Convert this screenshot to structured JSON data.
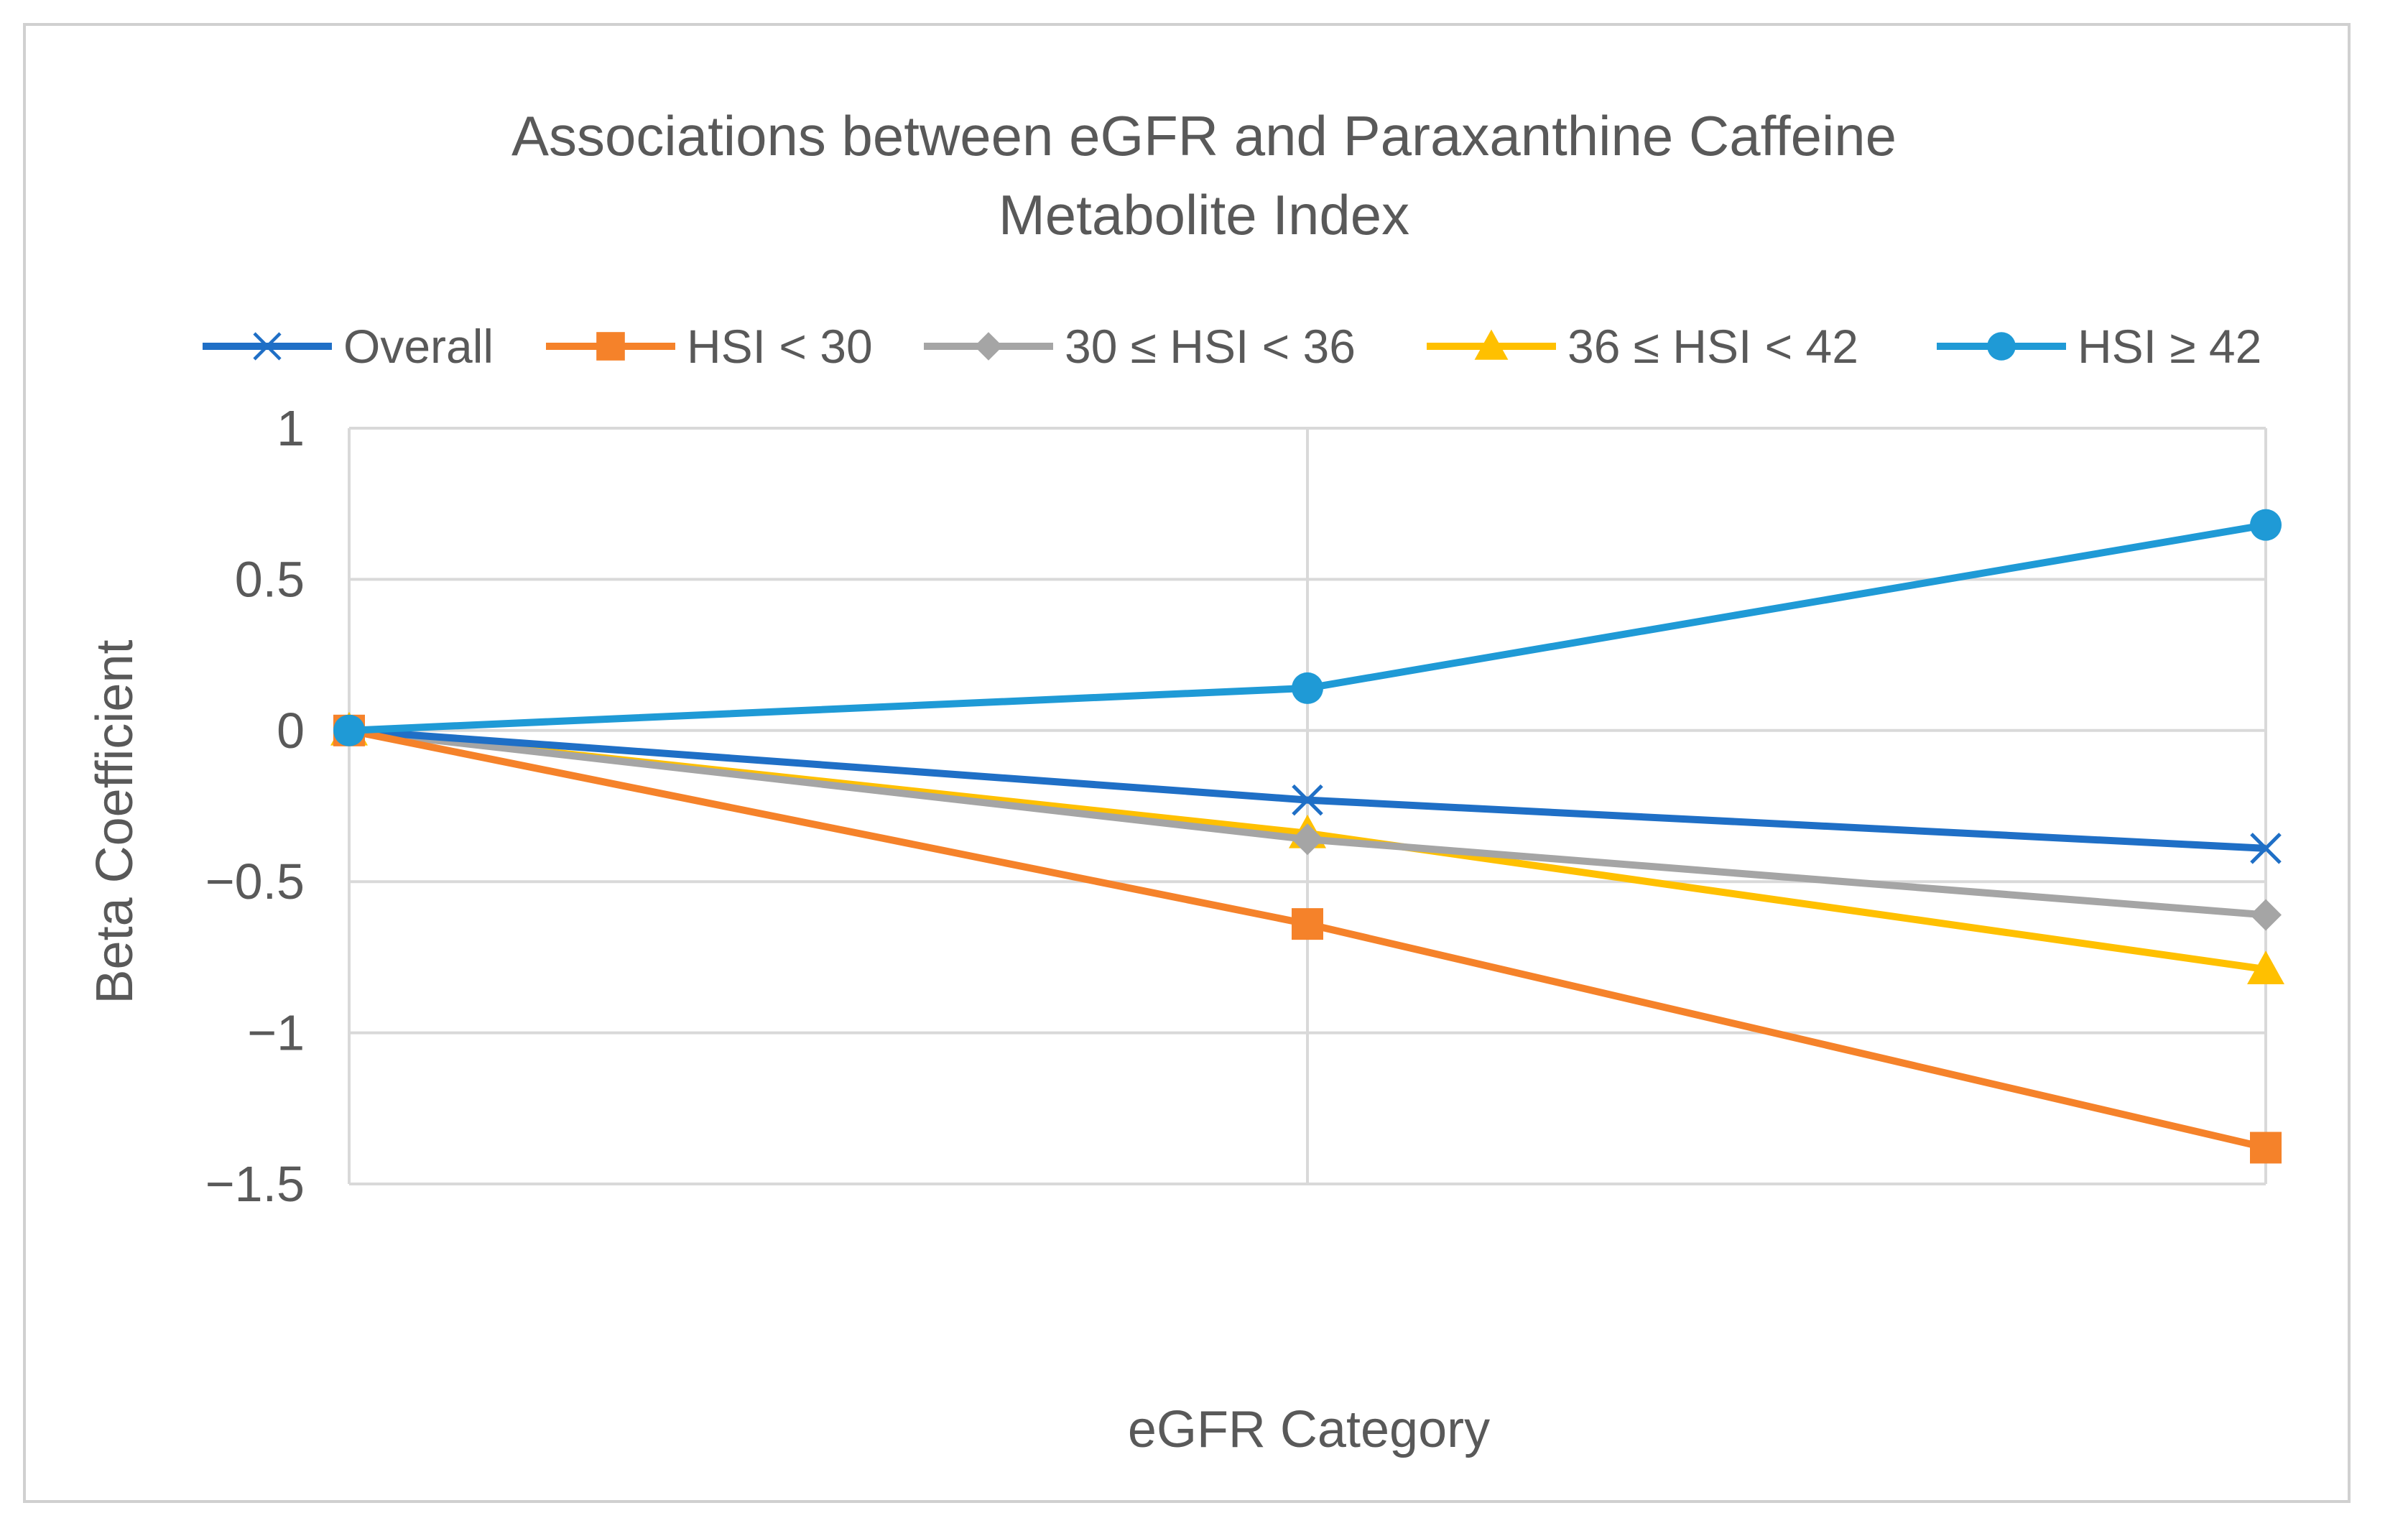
{
  "chart_data": {
    "type": "line",
    "title_lines": [
      "Associations between eGFR and Paraxanthine Caffeine",
      "Metabolite Index"
    ],
    "xlabel": "eGFR Category",
    "ylabel": "Beta Coefficient",
    "ylim": [
      -1.5,
      1
    ],
    "yticks": [
      1,
      0.5,
      0,
      -0.5,
      -1,
      -1.5
    ],
    "ytick_labels": [
      "1",
      "0.5",
      "0",
      "−0.5",
      "−1",
      "−1.5"
    ],
    "categories": [
      "",
      "",
      ""
    ],
    "grid": true,
    "legend_position": "top",
    "series": [
      {
        "name": "Overall",
        "color": "#1f6fc6",
        "marker": "x",
        "values": [
          0,
          -0.23,
          -0.39
        ]
      },
      {
        "name": "HSI < 30",
        "color": "#f5822a",
        "marker": "square",
        "values": [
          0,
          -0.64,
          -1.38
        ]
      },
      {
        "name": "30 ≤ HSI < 36",
        "color": "#a5a5a5",
        "marker": "diamond",
        "values": [
          0,
          -0.36,
          -0.61
        ]
      },
      {
        "name": "36 ≤ HSI < 42",
        "color": "#ffc000",
        "marker": "triangle",
        "values": [
          0,
          -0.34,
          -0.79
        ]
      },
      {
        "name": "HSI ≥ 42",
        "color": "#1f9ad6",
        "marker": "circle",
        "values": [
          0,
          0.14,
          0.68
        ]
      }
    ]
  }
}
